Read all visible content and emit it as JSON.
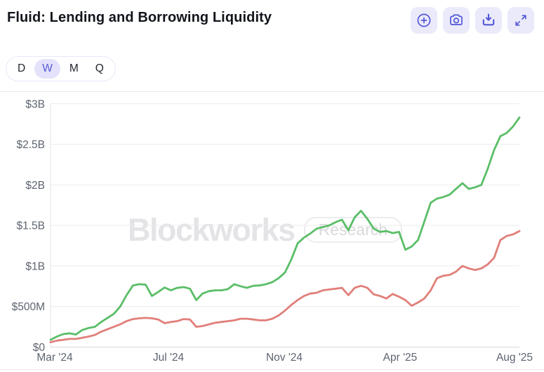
{
  "header": {
    "title": "Fluid: Lending and Borrowing Liquidity",
    "toolbar_buttons": [
      {
        "name": "zoom-in",
        "icon": "circle-plus-icon"
      },
      {
        "name": "snapshot",
        "icon": "camera-icon"
      },
      {
        "name": "download",
        "icon": "download-tray-icon"
      },
      {
        "name": "fullscreen",
        "icon": "expand-arrows-icon"
      }
    ]
  },
  "interval_tabs": {
    "options": [
      "D",
      "W",
      "M",
      "Q"
    ],
    "selected": "W"
  },
  "watermark": {
    "brand": "Blockworks",
    "badge": "Research"
  },
  "colors": {
    "accent_indigo": "#5457d6",
    "accent_bg": "#eaeafb",
    "selected_tab_bg": "#e3e2fa",
    "green_line": "#5abe68",
    "red_line": "#e17f7a",
    "gridline": "#ececee",
    "axis_text": "#5d6470"
  },
  "chart_data": {
    "type": "line",
    "title": "Fluid: Lending and Borrowing Liquidity",
    "interval": "weekly",
    "ylim_billions": [
      0,
      3
    ],
    "grid": "horizontal",
    "legend": "none",
    "y_axis": {
      "tick_labels": [
        "$0",
        "$500M",
        "$1B",
        "$1.5B",
        "$2B",
        "$2.5B",
        "$3B"
      ],
      "tick_values_billions": [
        0,
        0.5,
        1,
        1.5,
        2,
        2.5,
        3
      ]
    },
    "x_axis": {
      "tick_labels": [
        "Mar '24",
        "Jul '24",
        "Nov '24",
        "Apr '25",
        "Aug '25"
      ]
    },
    "series": [
      {
        "name": "green-line (upper series)",
        "color": "#5abe68",
        "unit": "USD billions",
        "values": [
          0.09,
          0.13,
          0.16,
          0.17,
          0.155,
          0.21,
          0.235,
          0.25,
          0.31,
          0.36,
          0.41,
          0.5,
          0.64,
          0.76,
          0.775,
          0.77,
          0.63,
          0.68,
          0.735,
          0.7,
          0.73,
          0.74,
          0.72,
          0.58,
          0.66,
          0.69,
          0.7,
          0.7,
          0.715,
          0.775,
          0.75,
          0.73,
          0.755,
          0.76,
          0.775,
          0.8,
          0.85,
          0.92,
          1.08,
          1.28,
          1.35,
          1.4,
          1.46,
          1.48,
          1.5,
          1.54,
          1.57,
          1.44,
          1.6,
          1.68,
          1.58,
          1.46,
          1.42,
          1.43,
          1.405,
          1.42,
          1.2,
          1.24,
          1.32,
          1.55,
          1.78,
          1.83,
          1.85,
          1.88,
          1.95,
          2.02,
          1.95,
          1.97,
          2.0,
          2.2,
          2.43,
          2.6,
          2.64,
          2.72,
          2.83
        ]
      },
      {
        "name": "red-line (lower series)",
        "color": "#e17f7a",
        "unit": "USD billions",
        "values": [
          0.06,
          0.08,
          0.09,
          0.1,
          0.1,
          0.115,
          0.13,
          0.15,
          0.19,
          0.22,
          0.25,
          0.28,
          0.32,
          0.345,
          0.355,
          0.36,
          0.355,
          0.34,
          0.295,
          0.31,
          0.32,
          0.345,
          0.34,
          0.25,
          0.26,
          0.28,
          0.3,
          0.31,
          0.32,
          0.33,
          0.35,
          0.35,
          0.34,
          0.33,
          0.33,
          0.35,
          0.39,
          0.45,
          0.52,
          0.58,
          0.63,
          0.66,
          0.67,
          0.7,
          0.71,
          0.72,
          0.73,
          0.64,
          0.73,
          0.755,
          0.73,
          0.65,
          0.63,
          0.6,
          0.655,
          0.62,
          0.58,
          0.51,
          0.55,
          0.6,
          0.7,
          0.85,
          0.88,
          0.89,
          0.93,
          1.0,
          0.97,
          0.95,
          0.97,
          1.02,
          1.1,
          1.32,
          1.37,
          1.39,
          1.43
        ]
      }
    ]
  }
}
